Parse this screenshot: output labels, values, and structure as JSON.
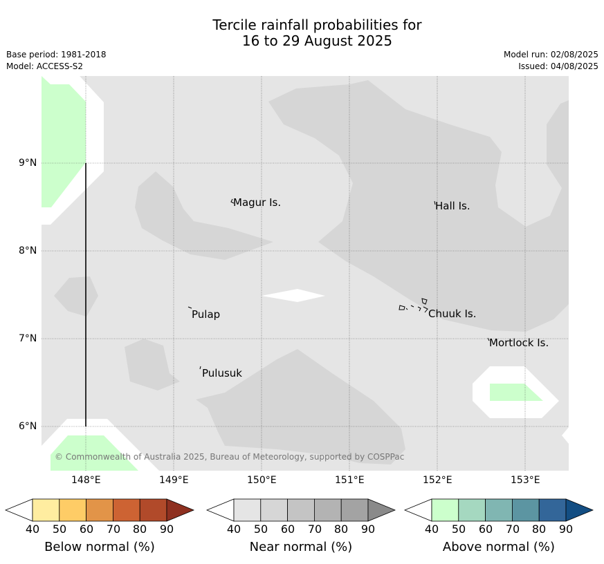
{
  "title": {
    "line1": "Tercile rainfall probabilities for",
    "line2": "16 to 29 August 2025"
  },
  "meta": {
    "base_period": "Base period: 1981-2018",
    "model": "Model: ACCESS-S2",
    "model_run": "Model run: 02/08/2025",
    "issued": "Issued: 04/08/2025"
  },
  "map": {
    "background": "#e5e5e5",
    "x_ticks": [
      "148°E",
      "149°E",
      "150°E",
      "151°E",
      "152°E",
      "153°E"
    ],
    "y_ticks": [
      "9°N",
      "8°N",
      "7°N",
      "6°N"
    ],
    "places": [
      "Magur Is.",
      "Hall Is.",
      "Pulap",
      "Chuuk Is.",
      "Mortlock Is.",
      "Pulusuk"
    ],
    "copyright": "© Commonwealth of Australia 2025, Bureau of Meteorology, supported by COSPPac"
  },
  "colorbars": [
    {
      "title": "Below normal (%)",
      "ticks": [
        "40",
        "50",
        "60",
        "70",
        "80",
        "90"
      ],
      "colors": [
        "#ffffff",
        "#ffeda0",
        "#fecc66",
        "#e29448",
        "#cd6333",
        "#b14a2a",
        "#8e3020"
      ]
    },
    {
      "title": "Near normal (%)",
      "ticks": [
        "40",
        "50",
        "60",
        "70",
        "80",
        "90"
      ],
      "colors": [
        "#ffffff",
        "#e5e5e5",
        "#d6d6d6",
        "#c4c4c4",
        "#b3b3b3",
        "#a3a3a3",
        "#8a8a8a"
      ]
    },
    {
      "title": "Above normal (%)",
      "ticks": [
        "40",
        "50",
        "60",
        "70",
        "80",
        "90"
      ],
      "colors": [
        "#ffffff",
        "#ccffcc",
        "#a5d8c0",
        "#80b6b2",
        "#5c95a2",
        "#336699",
        "#134e83"
      ]
    }
  ]
}
